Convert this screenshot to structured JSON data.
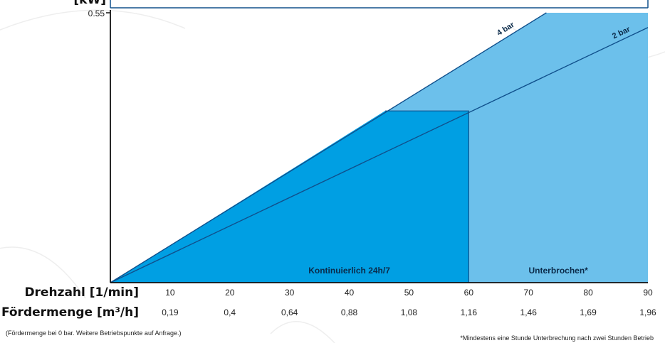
{
  "chart_data": {
    "type": "area",
    "ylabel": "[kW]",
    "ylim": [
      0,
      0.55
    ],
    "y_ticks": [
      "0.55"
    ],
    "xlim": [
      0,
      90
    ],
    "x": [
      10,
      20,
      30,
      40,
      50,
      60,
      70,
      80,
      90
    ],
    "x_tick_labels": [
      "10",
      "20",
      "30",
      "40",
      "50",
      "60",
      "70",
      "80",
      "90"
    ],
    "flow_tick_labels": [
      "0,19",
      "0,4",
      "0,64",
      "0,88",
      "1,08",
      "1,16",
      "1,46",
      "1,69",
      "1,96"
    ],
    "row1_label": "Drehzahl [1/min]",
    "row2_label": "Fördermenge [m³/h]",
    "series": [
      {
        "name": "4 bar",
        "points": [
          [
            0,
            0
          ],
          [
            73,
            0.55
          ]
        ]
      },
      {
        "name": "2 bar",
        "points": [
          [
            0,
            0
          ],
          [
            90,
            0.52
          ]
        ]
      }
    ],
    "continuous_boundary": [
      [
        0,
        0
      ],
      [
        46,
        0.35
      ],
      [
        60,
        0.35
      ],
      [
        60,
        0
      ]
    ],
    "regions": [
      {
        "label": "Kontinuierlich 24h/7",
        "x_range": [
          0,
          60
        ],
        "color": "#009fe3"
      },
      {
        "label": "Unterbrochen*",
        "x_range": [
          60,
          90
        ],
        "color": "#6cc0eb"
      }
    ],
    "notes": {
      "left": "(Fördermenge bei 0 bar. Weitere Betriebspunkte auf Anfrage.)",
      "right": "*Mindestens eine Stunde Unterbrechung nach zwei Stunden Betrieb"
    },
    "colors": {
      "continuous": "#009fe3",
      "intermittent": "#6cc0eb",
      "line": "#10508c"
    }
  }
}
